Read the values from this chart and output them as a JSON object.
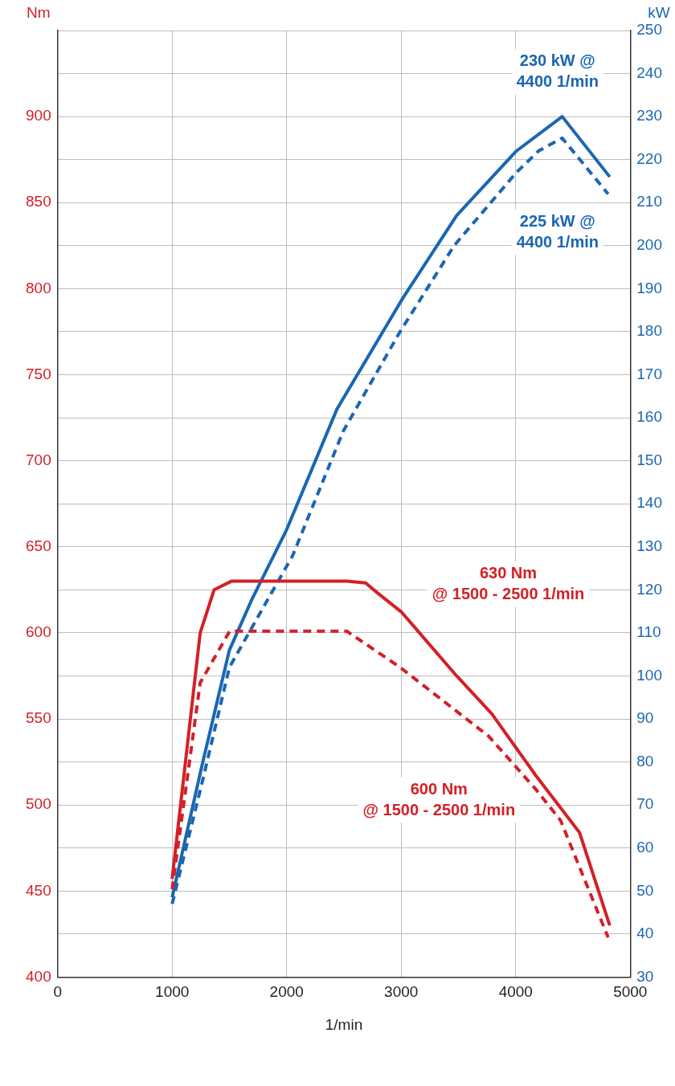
{
  "chart_data": {
    "type": "line",
    "xlabel": "1/min",
    "ylabel": "Nm",
    "y2label": "kW",
    "xlim": [
      0,
      5000
    ],
    "xticks": [
      0,
      1000,
      2000,
      3000,
      4000,
      5000
    ],
    "ylim": [
      400,
      950
    ],
    "yticks": [
      400,
      450,
      500,
      550,
      600,
      650,
      700,
      750,
      800,
      850,
      900
    ],
    "y2lim": [
      30,
      250
    ],
    "y2ticks": [
      30,
      40,
      50,
      60,
      70,
      80,
      90,
      100,
      110,
      120,
      130,
      140,
      150,
      160,
      170,
      180,
      190,
      200,
      210,
      220,
      230,
      240,
      250
    ],
    "grid": true,
    "legend": false,
    "marker": "none",
    "series": [
      {
        "color": "#d32027",
        "line_style": "solid",
        "x": [
          1000,
          1195,
          1245,
          1366,
          1517,
          2525,
          2690,
          2797,
          3004,
          3484,
          3791,
          4177,
          4557,
          4821
        ],
        "values": [
          457,
          571,
          600,
          625,
          630,
          630,
          629,
          623,
          612,
          575,
          553,
          517,
          484,
          430
        ]
      },
      {
        "color": "#d32027",
        "line_style": "dashed",
        "x": [
          1000,
          1245,
          1502,
          2525,
          2990,
          3763,
          4177,
          4392,
          4807
        ],
        "values": [
          451,
          571,
          601,
          601,
          580,
          540,
          509,
          491,
          423
        ]
      },
      {
        "color": "#1a66b3",
        "line_style": "solid",
        "axis": "y2",
        "x": [
          1000,
          1259,
          1500,
          1700,
          2000,
          2439,
          3019,
          3484,
          4006,
          4406,
          4821
        ],
        "values": [
          48.5,
          79,
          106,
          118,
          134,
          162,
          188,
          207,
          222,
          230,
          216
        ]
      },
      {
        "color": "#1a66b3",
        "line_style": "dashed",
        "axis": "y2",
        "x": [
          1000,
          1260,
          1500,
          2053,
          2496,
          2990,
          3462,
          4006,
          4199,
          4406,
          4807
        ],
        "values": [
          47,
          75,
          102,
          128,
          157,
          180,
          200,
          217,
          222,
          225,
          212
        ]
      }
    ],
    "annotations": [
      "630 Nm\n@ 1500 - 2500 1/min",
      "600 Nm\n@ 1500 - 2500 1/min",
      "230 kW @\n4400 1/min",
      "225 kW @\n4400 1/min"
    ]
  }
}
